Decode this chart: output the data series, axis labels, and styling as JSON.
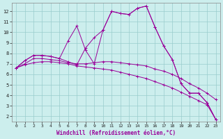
{
  "xlabel": "Windchill (Refroidissement éolien,°C)",
  "bg_color": "#cceeed",
  "line_color": "#990099",
  "grid_color": "#99cccc",
  "xlim": [
    -0.5,
    23.5
  ],
  "ylim": [
    1.5,
    12.8
  ],
  "xticks": [
    0,
    1,
    2,
    3,
    4,
    5,
    6,
    7,
    8,
    9,
    10,
    11,
    12,
    13,
    14,
    15,
    16,
    17,
    18,
    19,
    20,
    21,
    22,
    23
  ],
  "yticks": [
    2,
    3,
    4,
    5,
    6,
    7,
    8,
    9,
    10,
    11,
    12
  ],
  "series": [
    [
      6.6,
      7.3,
      7.8,
      7.8,
      7.7,
      7.5,
      7.2,
      6.9,
      8.5,
      9.5,
      10.2,
      12.0,
      11.8,
      11.7,
      12.3,
      12.5,
      10.5,
      8.7,
      7.4,
      5.1,
      4.2,
      4.2,
      3.3,
      1.7
    ],
    [
      6.6,
      7.3,
      7.8,
      7.8,
      7.7,
      7.5,
      9.2,
      10.6,
      8.3,
      7.0,
      10.2,
      12.0,
      11.8,
      11.7,
      12.3,
      12.5,
      10.5,
      8.7,
      7.4,
      5.1,
      4.2,
      4.2,
      3.3,
      1.7
    ],
    [
      6.6,
      7.0,
      7.5,
      7.5,
      7.4,
      7.3,
      7.1,
      7.0,
      7.0,
      7.1,
      7.2,
      7.2,
      7.1,
      7.0,
      6.9,
      6.8,
      6.5,
      6.3,
      6.0,
      5.6,
      5.1,
      4.7,
      4.2,
      3.6
    ],
    [
      6.6,
      6.9,
      7.1,
      7.2,
      7.2,
      7.1,
      7.0,
      6.8,
      6.7,
      6.6,
      6.5,
      6.4,
      6.2,
      6.0,
      5.8,
      5.6,
      5.3,
      5.0,
      4.7,
      4.3,
      3.9,
      3.5,
      3.1,
      1.7
    ]
  ]
}
